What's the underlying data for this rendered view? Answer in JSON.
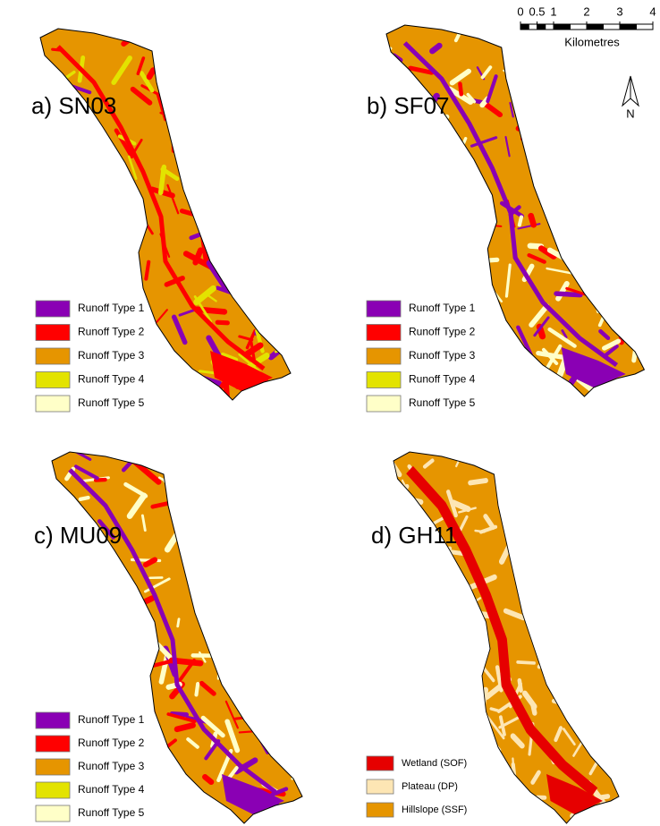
{
  "panels": [
    {
      "label": "a) SN03",
      "legend": [
        {
          "label": "Runoff Type 1",
          "color": "#8a00b4"
        },
        {
          "label": "Runoff Type 2",
          "color": "#ff0000"
        },
        {
          "label": "Runoff Type 3",
          "color": "#e69500"
        },
        {
          "label": "Runoff Type 4",
          "color": "#e3e300"
        },
        {
          "label": "Runoff Type 5",
          "color": "#ffffc8"
        }
      ]
    },
    {
      "label": "b) SF07",
      "legend": [
        {
          "label": "Runoff Type 1",
          "color": "#8a00b4"
        },
        {
          "label": "Runoff Type 2",
          "color": "#ff0000"
        },
        {
          "label": "Runoff Type 3",
          "color": "#e69500"
        },
        {
          "label": "Runoff Type 4",
          "color": "#e3e300"
        },
        {
          "label": "Runoff Type 5",
          "color": "#ffffc8"
        }
      ]
    },
    {
      "label": "c) MU09",
      "legend": [
        {
          "label": "Runoff Type 1",
          "color": "#8a00b4"
        },
        {
          "label": "Runoff Type 2",
          "color": "#ff0000"
        },
        {
          "label": "Runoff Type 3",
          "color": "#e69500"
        },
        {
          "label": "Runoff Type 4",
          "color": "#e3e300"
        },
        {
          "label": "Runoff Type 5",
          "color": "#ffffc8"
        }
      ]
    },
    {
      "label": "d) GH11",
      "legend": [
        {
          "label": "Wetland (SOF)",
          "color": "#e60000"
        },
        {
          "label": "Plateau (DP)",
          "color": "#fde6b4"
        },
        {
          "label": "Hillslope (SSF)",
          "color": "#e69500"
        }
      ]
    }
  ],
  "scale_bar": {
    "ticks": [
      0,
      0.5,
      1,
      2,
      3,
      4
    ],
    "unit": "Kilometres"
  },
  "north_arrow": "N"
}
